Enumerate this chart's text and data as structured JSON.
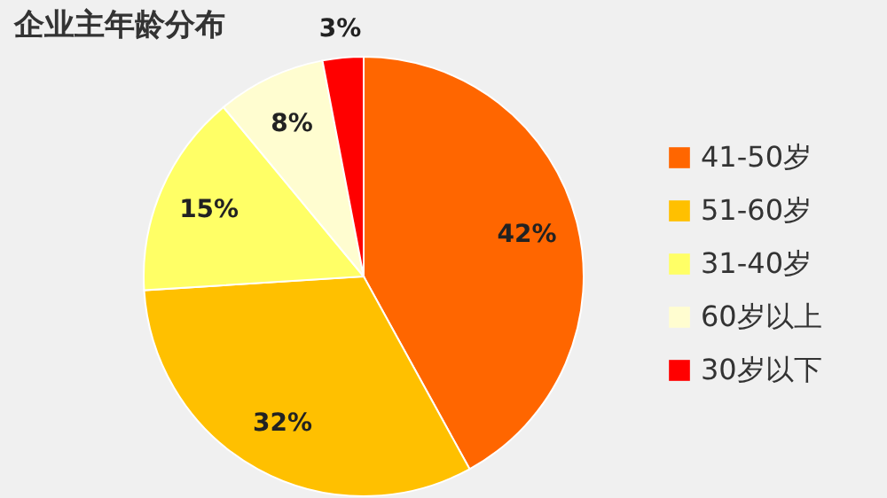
{
  "chart_data": {
    "type": "pie",
    "title": "企业主年龄分布",
    "categories": [
      "41-50岁",
      "51-60岁",
      "31-40岁",
      "60岁以上",
      "30岁以下"
    ],
    "values": [
      42,
      32,
      15,
      8,
      3
    ],
    "colors": [
      "#ff6600",
      "#ffc000",
      "#ffff66",
      "#fffdd0",
      "#ff0000"
    ],
    "value_labels": [
      "42%",
      "32%",
      "15%",
      "8%",
      "3%"
    ],
    "legend": "right"
  }
}
